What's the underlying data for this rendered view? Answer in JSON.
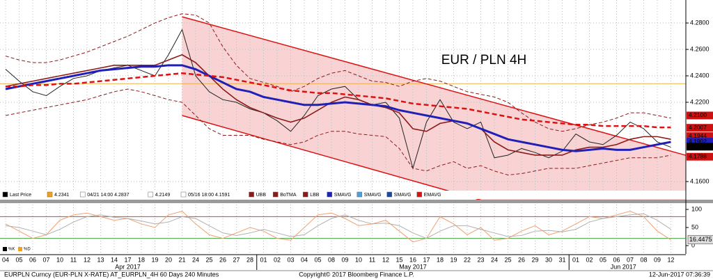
{
  "chart_data": [
    {
      "type": "line",
      "title": "EUR / PLN 4H",
      "title_color": "#cc1111",
      "categories": [
        "04",
        "05",
        "06",
        "07",
        "10",
        "11",
        "12",
        "13",
        "14",
        "17",
        "18",
        "19",
        "20",
        "21",
        "24",
        "25",
        "26",
        "27",
        "28",
        "01",
        "02",
        "03",
        "04",
        "05",
        "08",
        "09",
        "10",
        "11",
        "12",
        "15",
        "16",
        "17",
        "18",
        "19",
        "22",
        "23",
        "24",
        "25",
        "26",
        "29",
        "30",
        "31",
        "01",
        "02",
        "05",
        "06",
        "07",
        "08",
        "09",
        "12"
      ],
      "months": [
        {
          "label": "Apr 2017",
          "count": 19
        },
        {
          "label": "May 2017",
          "count": 23
        },
        {
          "label": "Jun 2017",
          "count": 8
        }
      ],
      "ylim": [
        4.1447,
        4.2974
      ],
      "yticks": [
        {
          "value": 4.16,
          "label": "4.1600"
        },
        {
          "value": 4.22,
          "label": "4.2200"
        },
        {
          "value": 4.24,
          "label": "4.2400"
        },
        {
          "value": 4.26,
          "label": "4.2600"
        },
        {
          "value": 4.28,
          "label": "4.2800"
        }
      ],
      "grid": true,
      "series": [
        {
          "color": "#222222",
          "width": 1,
          "dash": "",
          "values": [
            4.245,
            4.236,
            4.228,
            4.225,
            4.232,
            4.238,
            4.24,
            4.244,
            4.246,
            4.248,
            4.244,
            4.24,
            4.256,
            4.275,
            4.24,
            4.228,
            4.222,
            4.22,
            4.215,
            4.212,
            4.206,
            4.198,
            4.21,
            4.225,
            4.23,
            4.232,
            4.222,
            4.218,
            4.22,
            4.208,
            4.17,
            4.205,
            4.222,
            4.205,
            4.2,
            4.205,
            4.178,
            4.18,
            4.185,
            4.182,
            4.178,
            4.183,
            4.196,
            4.19,
            4.188,
            4.195,
            4.205,
            4.2,
            4.19,
            4.186
          ]
        },
        {
          "color": "#8b1a1a",
          "width": 1,
          "dash": "5 3",
          "values": [
            4.255,
            4.252,
            4.25,
            4.25,
            4.252,
            4.255,
            4.258,
            4.262,
            4.266,
            4.27,
            4.275,
            4.28,
            4.284,
            4.287,
            4.286,
            4.28,
            4.262,
            4.248,
            4.238,
            4.235,
            4.232,
            4.228,
            4.232,
            4.238,
            4.242,
            4.244,
            4.24,
            4.236,
            4.235,
            4.232,
            4.236,
            4.238,
            4.236,
            4.232,
            4.228,
            4.226,
            4.224,
            4.22,
            4.212,
            4.205,
            4.2,
            4.198,
            4.2,
            4.203,
            4.205,
            4.208,
            4.212,
            4.212,
            4.21,
            4.208
          ]
        },
        {
          "color": "#8b1a1a",
          "width": 1.6,
          "dash": "",
          "values": [
            4.232,
            4.234,
            4.236,
            4.238,
            4.24,
            4.242,
            4.244,
            4.246,
            4.248,
            4.248,
            4.248,
            4.248,
            4.252,
            4.256,
            4.25,
            4.24,
            4.23,
            4.222,
            4.216,
            4.212,
            4.208,
            4.205,
            4.208,
            4.214,
            4.22,
            4.224,
            4.222,
            4.218,
            4.216,
            4.212,
            4.2,
            4.198,
            4.204,
            4.206,
            4.204,
            4.2,
            4.19,
            4.184,
            4.182,
            4.18,
            4.18,
            4.18,
            4.184,
            4.186,
            4.186,
            4.188,
            4.192,
            4.194,
            4.194,
            4.192
          ]
        },
        {
          "color": "#8b1a1a",
          "width": 1,
          "dash": "5 3",
          "values": [
            4.21,
            4.212,
            4.214,
            4.216,
            4.218,
            4.22,
            4.222,
            4.225,
            4.228,
            4.23,
            4.228,
            4.225,
            4.222,
            4.22,
            4.21,
            4.2,
            4.195,
            4.195,
            4.195,
            4.192,
            4.19,
            4.188,
            4.19,
            4.195,
            4.198,
            4.198,
            4.196,
            4.195,
            4.194,
            4.185,
            4.17,
            4.168,
            4.172,
            4.175,
            4.17,
            4.172,
            4.168,
            4.165,
            4.166,
            4.168,
            4.17,
            4.17,
            4.17,
            4.172,
            4.174,
            4.176,
            4.178,
            4.178,
            4.178,
            4.18
          ]
        },
        {
          "color": "#2020b8",
          "width": 3,
          "dash": "",
          "values": [
            4.23,
            4.232,
            4.234,
            4.236,
            4.238,
            4.24,
            4.242,
            4.244,
            4.245,
            4.246,
            4.247,
            4.247,
            4.248,
            4.248,
            4.245,
            4.24,
            4.235,
            4.23,
            4.228,
            4.224,
            4.222,
            4.22,
            4.218,
            4.218,
            4.219,
            4.22,
            4.219,
            4.218,
            4.217,
            4.214,
            4.212,
            4.21,
            4.208,
            4.206,
            4.204,
            4.2,
            4.196,
            4.192,
            4.19,
            4.188,
            4.186,
            4.184,
            4.183,
            4.184,
            4.185,
            4.184,
            4.184,
            4.186,
            4.188,
            4.19
          ]
        },
        {
          "color": "#dd1111",
          "width": 2.5,
          "dash": "7 4",
          "values": [
            4.232,
            4.232,
            4.233,
            4.233,
            4.234,
            4.234,
            4.235,
            4.236,
            4.237,
            4.238,
            4.239,
            4.24,
            4.241,
            4.242,
            4.241,
            4.24,
            4.239,
            4.237,
            4.235,
            4.233,
            4.231,
            4.229,
            4.228,
            4.227,
            4.227,
            4.226,
            4.225,
            4.224,
            4.223,
            4.221,
            4.219,
            4.218,
            4.217,
            4.216,
            4.215,
            4.213,
            4.211,
            4.209,
            4.207,
            4.206,
            4.205,
            4.204,
            4.203,
            4.203,
            4.202,
            4.202,
            4.202,
            4.202,
            4.201,
            4.201
          ]
        }
      ],
      "reference_line": {
        "value": 4.2341,
        "color": "#f0b040"
      },
      "channel": {
        "upper": [
          [
            13,
            4.2847
          ],
          [
            49,
            4.183
          ]
        ],
        "lower": [
          [
            13,
            4.21
          ],
          [
            35,
            4.146
          ]
        ],
        "color": "#dd1111",
        "fill": "#f9d3d3"
      },
      "price_tags": [
        {
          "value": 4.21,
          "label": "4.2100",
          "color": "#cc1111"
        },
        {
          "value": 4.2007,
          "label": "4.2007",
          "color": "#cc1111"
        },
        {
          "value": 4.1944,
          "label": "4.1944",
          "color": "#cc1111"
        },
        {
          "value": 4.1902,
          "label": "4.1902",
          "color": "#2020b8"
        },
        {
          "value": 4.1864,
          "label": "4.1864",
          "color": "#000000"
        },
        {
          "value": 4.1788,
          "label": "4.1788",
          "color": "#cc1111"
        }
      ],
      "legend": [
        {
          "label": "Last Price",
          "color": "#000000"
        },
        {
          "label": "4.2341",
          "color": "#f0a020"
        },
        {
          "label": "04/21 14:00 4.2837",
          "color": "#ffffff"
        },
        {
          "label": "4.2149",
          "color": "#ffffff"
        },
        {
          "label": "05/16 18:00 4.1591",
          "color": "#ffffff"
        },
        {
          "label": "UBB",
          "color": "#8b1a1a"
        },
        {
          "label": "BoTMA",
          "color": "#8b1a1a"
        },
        {
          "label": "LBB",
          "color": "#8b1a1a"
        },
        {
          "label": "SMAVG",
          "color": "#2020b8"
        },
        {
          "label": "SMAVG",
          "color": "#4aa0e0"
        },
        {
          "label": "SMAVG",
          "color": "#1a4a9a"
        },
        {
          "label": "EMAVG",
          "color": "#dd1111"
        }
      ]
    },
    {
      "type": "line",
      "ylim": [
        0,
        100
      ],
      "yticks": [
        0,
        50,
        100
      ],
      "levels": [
        {
          "value": 80,
          "color": "#d04040"
        },
        {
          "value": 20,
          "color": "#40a040"
        }
      ],
      "series": [
        {
          "color": "#f0a070",
          "width": 1,
          "dash": "",
          "values": [
            60,
            40,
            20,
            30,
            70,
            85,
            90,
            80,
            70,
            75,
            60,
            50,
            85,
            95,
            60,
            30,
            20,
            35,
            50,
            40,
            20,
            15,
            50,
            85,
            90,
            75,
            55,
            60,
            70,
            40,
            10,
            20,
            80,
            60,
            30,
            50,
            15,
            20,
            40,
            55,
            30,
            40,
            60,
            80,
            75,
            85,
            95,
            80,
            40,
            16
          ]
        },
        {
          "color": "#b0b0b0",
          "width": 1,
          "dash": "",
          "values": [
            55,
            50,
            40,
            30,
            45,
            65,
            80,
            85,
            78,
            75,
            68,
            60,
            65,
            80,
            75,
            55,
            35,
            28,
            35,
            45,
            35,
            25,
            30,
            55,
            75,
            85,
            70,
            60,
            62,
            55,
            35,
            20,
            40,
            55,
            55,
            45,
            35,
            25,
            28,
            40,
            42,
            38,
            45,
            65,
            75,
            80,
            85,
            88,
            70,
            45
          ]
        }
      ],
      "legend": [
        {
          "label": "%K",
          "color": "#000000"
        },
        {
          "label": "%D",
          "color": "#f0a020"
        }
      ],
      "tag": {
        "value": 16.4475,
        "label": "16.4475"
      }
    }
  ],
  "footer": {
    "left": "EURPLN Curncy (EUR-PLN X-RATE) AT_EURPLN_4H 60 Days 240 Minutes",
    "center": "Copyright© 2017 Bloomberg Finance L.P.",
    "right": "12-Jun-2017 07:36:39"
  }
}
